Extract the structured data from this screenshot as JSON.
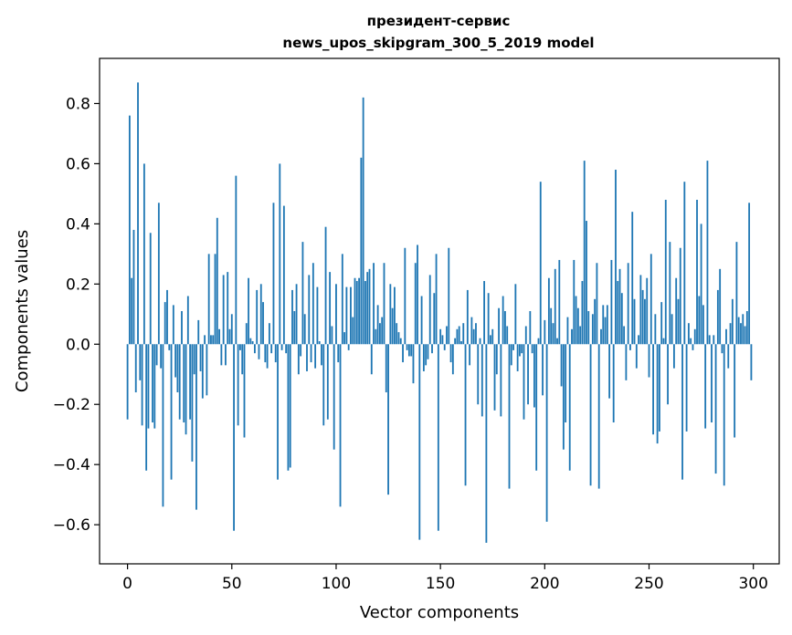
{
  "chart_data": {
    "type": "bar",
    "title_line1": "президент-сервис",
    "title_line2": "news_upos_skipgram_300_5_2019 model",
    "xlabel": "Vector components",
    "ylabel": "Components values",
    "xlim": [
      -13.4,
      312.4
    ],
    "ylim": [
      -0.73,
      0.95
    ],
    "xticks": [
      0,
      50,
      100,
      150,
      200,
      250,
      300
    ],
    "yticks": [
      -0.6,
      -0.4,
      -0.2,
      0.0,
      0.2,
      0.4,
      0.6,
      0.8
    ],
    "ytick_labels": [
      "−0.6",
      "−0.4",
      "−0.2",
      "0.0",
      "0.2",
      "0.4",
      "0.6",
      "0.8"
    ],
    "bar_color": "#1f77b4",
    "grid": false,
    "values": [
      -0.25,
      0.76,
      0.22,
      0.38,
      -0.16,
      0.87,
      -0.12,
      -0.27,
      0.6,
      -0.42,
      -0.28,
      0.37,
      -0.26,
      -0.28,
      -0.07,
      0.47,
      -0.08,
      -0.54,
      0.14,
      0.18,
      -0.02,
      -0.45,
      0.13,
      -0.11,
      -0.16,
      -0.25,
      0.11,
      -0.26,
      -0.3,
      0.16,
      -0.25,
      -0.39,
      -0.1,
      -0.55,
      0.08,
      -0.09,
      -0.18,
      0.03,
      -0.17,
      0.3,
      0.03,
      0.03,
      0.3,
      0.42,
      0.05,
      -0.07,
      0.23,
      -0.07,
      0.24,
      0.05,
      0.1,
      -0.62,
      0.56,
      -0.27,
      -0.02,
      -0.1,
      -0.31,
      0.07,
      0.22,
      0.02,
      0.01,
      -0.03,
      0.18,
      -0.05,
      0.2,
      0.14,
      -0.06,
      -0.08,
      0.07,
      -0.03,
      0.47,
      -0.06,
      -0.45,
      0.6,
      -0.02,
      0.46,
      -0.03,
      -0.42,
      -0.41,
      0.18,
      0.11,
      0.2,
      -0.1,
      -0.04,
      0.34,
      0.1,
      -0.09,
      0.23,
      -0.06,
      0.27,
      -0.08,
      0.19,
      0.01,
      -0.07,
      -0.27,
      0.39,
      -0.25,
      0.24,
      0.06,
      -0.35,
      0.2,
      -0.06,
      -0.54,
      0.3,
      0.04,
      0.19,
      -0.02,
      0.19,
      0.09,
      0.22,
      0.21,
      0.22,
      0.62,
      0.82,
      0.21,
      0.24,
      0.25,
      -0.1,
      0.27,
      0.05,
      0.13,
      0.07,
      0.09,
      0.27,
      -0.16,
      -0.5,
      0.2,
      0.12,
      0.19,
      0.07,
      0.04,
      0.02,
      -0.06,
      0.32,
      -0.02,
      -0.04,
      -0.04,
      -0.13,
      0.27,
      0.33,
      -0.65,
      0.16,
      -0.09,
      -0.07,
      -0.05,
      0.23,
      -0.03,
      0.17,
      0.3,
      -0.62,
      0.05,
      0.03,
      -0.02,
      0.06,
      0.32,
      -0.06,
      -0.1,
      0.02,
      0.05,
      0.06,
      0.01,
      0.07,
      -0.47,
      0.18,
      -0.07,
      0.09,
      0.05,
      0.07,
      -0.2,
      0.02,
      -0.24,
      0.21,
      -0.66,
      0.17,
      0.03,
      0.05,
      -0.22,
      -0.1,
      0.12,
      -0.24,
      0.16,
      0.11,
      0.06,
      -0.48,
      -0.07,
      -0.02,
      0.2,
      -0.09,
      -0.04,
      -0.03,
      -0.25,
      0.06,
      -0.2,
      0.11,
      -0.03,
      -0.21,
      -0.42,
      0.02,
      0.54,
      -0.17,
      0.08,
      -0.59,
      0.22,
      0.12,
      0.07,
      0.25,
      0.02,
      0.28,
      -0.14,
      -0.35,
      -0.26,
      0.09,
      -0.42,
      0.05,
      0.28,
      0.16,
      0.12,
      0.06,
      0.21,
      0.61,
      0.41,
      0.11,
      -0.47,
      0.1,
      0.15,
      0.27,
      -0.48,
      0.05,
      0.13,
      0.09,
      0.13,
      -0.18,
      0.28,
      -0.26,
      0.58,
      0.21,
      0.25,
      0.17,
      0.06,
      -0.12,
      0.27,
      -0.02,
      0.44,
      0.15,
      -0.08,
      0.03,
      0.23,
      0.18,
      0.15,
      0.22,
      -0.11,
      0.3,
      -0.3,
      0.1,
      -0.33,
      -0.29,
      0.14,
      0.02,
      0.48,
      -0.2,
      0.34,
      0.1,
      -0.08,
      0.22,
      0.15,
      0.32,
      -0.45,
      0.54,
      -0.29,
      0.07,
      0.02,
      -0.02,
      0.05,
      0.48,
      0.16,
      0.4,
      0.13,
      -0.28,
      0.61,
      0.03,
      -0.26,
      0.03,
      -0.43,
      0.18,
      0.25,
      -0.03,
      -0.47,
      0.05,
      -0.08,
      0.07,
      0.15,
      -0.31,
      0.34,
      0.09,
      0.07,
      0.1,
      0.06,
      0.11,
      0.47,
      -0.12
    ]
  }
}
